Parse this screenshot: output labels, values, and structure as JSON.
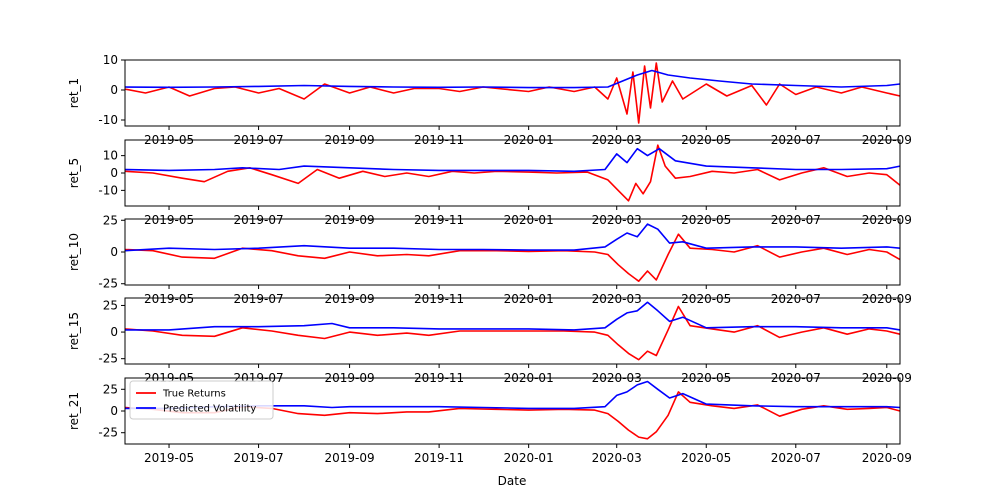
{
  "chart_data": {
    "type": "line",
    "shared_x": {
      "xlabel": "Date",
      "start": "2019-04-01",
      "end": "2020-09-10",
      "tick_dates": [
        "2019-05-01",
        "2019-07-01",
        "2019-09-01",
        "2019-11-01",
        "2020-01-01",
        "2020-03-01",
        "2020-05-01",
        "2020-07-01",
        "2020-09-01"
      ],
      "tick_labels": [
        "2019-05",
        "2019-07",
        "2019-09",
        "2019-11",
        "2020-01",
        "2020-03",
        "2020-05",
        "2020-07",
        "2020-09"
      ]
    },
    "legend": {
      "placement": "lower-left",
      "entries": [
        {
          "name": "True Returns",
          "color": "#ff0000"
        },
        {
          "name": "Predicted Volatility",
          "color": "#0000ff"
        }
      ]
    },
    "panels": [
      {
        "ylabel": "ret_1",
        "ylim": [
          -12,
          10
        ],
        "yticks": [
          -10,
          0,
          10
        ],
        "series": [
          {
            "name": "True Returns",
            "color": "#ff0000",
            "x": [
              "2019-04-01",
              "2019-04-15",
              "2019-05-01",
              "2019-05-15",
              "2019-06-01",
              "2019-06-15",
              "2019-07-01",
              "2019-07-15",
              "2019-08-01",
              "2019-08-15",
              "2019-09-01",
              "2019-09-15",
              "2019-10-01",
              "2019-10-15",
              "2019-11-01",
              "2019-11-15",
              "2019-12-01",
              "2019-12-15",
              "2020-01-01",
              "2020-01-15",
              "2020-02-01",
              "2020-02-15",
              "2020-02-24",
              "2020-03-01",
              "2020-03-08",
              "2020-03-12",
              "2020-03-16",
              "2020-03-20",
              "2020-03-24",
              "2020-03-28",
              "2020-04-01",
              "2020-04-08",
              "2020-04-15",
              "2020-05-01",
              "2020-05-15",
              "2020-06-01",
              "2020-06-11",
              "2020-06-20",
              "2020-07-01",
              "2020-07-15",
              "2020-08-01",
              "2020-08-15",
              "2020-09-01",
              "2020-09-10"
            ],
            "y": [
              0.3,
              -1,
              1,
              -2,
              0.5,
              1,
              -1,
              0.5,
              -3,
              2,
              -1,
              1,
              -1,
              0.5,
              0.5,
              -0.5,
              1,
              0.3,
              -0.5,
              1,
              -0.5,
              1,
              -3,
              4,
              -8,
              6,
              -11,
              8,
              -6,
              9,
              -4,
              3,
              -3,
              2,
              -2,
              1.5,
              -5,
              2,
              -1.5,
              1,
              -1,
              1,
              -1,
              -2
            ]
          },
          {
            "name": "Predicted Volatility",
            "color": "#0000ff",
            "x": [
              "2019-04-01",
              "2019-05-01",
              "2019-06-01",
              "2019-07-01",
              "2019-08-01",
              "2019-09-01",
              "2019-10-01",
              "2019-11-01",
              "2019-12-01",
              "2020-01-01",
              "2020-02-01",
              "2020-02-24",
              "2020-03-05",
              "2020-03-15",
              "2020-03-25",
              "2020-04-05",
              "2020-04-20",
              "2020-05-10",
              "2020-06-01",
              "2020-07-01",
              "2020-08-01",
              "2020-09-01",
              "2020-09-10"
            ],
            "y": [
              1,
              0.9,
              1,
              1.2,
              1.5,
              1.2,
              1,
              0.9,
              1,
              0.8,
              0.8,
              1,
              3,
              5,
              6.5,
              5,
              4,
              3,
              2,
              1.5,
              1,
              1.5,
              2
            ]
          }
        ]
      },
      {
        "ylabel": "ret_5",
        "ylim": [
          -19,
          19
        ],
        "yticks": [
          -10,
          0,
          10
        ],
        "series": [
          {
            "name": "True Returns",
            "color": "#ff0000",
            "x": [
              "2019-04-01",
              "2019-04-20",
              "2019-05-10",
              "2019-05-25",
              "2019-06-10",
              "2019-06-25",
              "2019-07-10",
              "2019-07-28",
              "2019-08-10",
              "2019-08-25",
              "2019-09-10",
              "2019-09-25",
              "2019-10-10",
              "2019-10-25",
              "2019-11-10",
              "2019-11-25",
              "2019-12-10",
              "2020-01-01",
              "2020-01-20",
              "2020-02-10",
              "2020-02-24",
              "2020-03-02",
              "2020-03-09",
              "2020-03-14",
              "2020-03-19",
              "2020-03-24",
              "2020-03-29",
              "2020-04-03",
              "2020-04-10",
              "2020-04-20",
              "2020-05-05",
              "2020-05-20",
              "2020-06-05",
              "2020-06-20",
              "2020-07-05",
              "2020-07-20",
              "2020-08-05",
              "2020-08-20",
              "2020-09-01",
              "2020-09-10"
            ],
            "y": [
              1,
              0,
              -3,
              -5,
              1,
              3,
              -1,
              -6,
              2,
              -3,
              1,
              -2,
              0,
              -2,
              1,
              0,
              1,
              0.5,
              0,
              0.5,
              -4,
              -10,
              -16,
              -6,
              -12,
              -5,
              16,
              4,
              -3,
              -2,
              1,
              0,
              2,
              -4,
              0,
              3,
              -2,
              0,
              -1,
              -7
            ]
          },
          {
            "name": "Predicted Volatility",
            "color": "#0000ff",
            "x": [
              "2019-04-01",
              "2019-05-01",
              "2019-06-01",
              "2019-06-20",
              "2019-07-15",
              "2019-08-01",
              "2019-09-01",
              "2019-10-01",
              "2019-11-01",
              "2019-12-01",
              "2020-01-01",
              "2020-02-01",
              "2020-02-22",
              "2020-03-01",
              "2020-03-08",
              "2020-03-15",
              "2020-03-22",
              "2020-03-30",
              "2020-04-10",
              "2020-05-01",
              "2020-06-01",
              "2020-07-01",
              "2020-08-01",
              "2020-09-01",
              "2020-09-10"
            ],
            "y": [
              2,
              1.5,
              2,
              3,
              2,
              4,
              3,
              2,
              1.5,
              1.5,
              1.5,
              1,
              2,
              11,
              6,
              14,
              10,
              14,
              7,
              4,
              3,
              2,
              2,
              2.5,
              4
            ]
          }
        ]
      },
      {
        "ylabel": "ret_10",
        "ylim": [
          -26,
          26
        ],
        "yticks": [
          -25,
          0,
          25
        ],
        "series": [
          {
            "name": "True Returns",
            "color": "#ff0000",
            "x": [
              "2019-04-01",
              "2019-04-20",
              "2019-05-10",
              "2019-06-01",
              "2019-06-20",
              "2019-07-10",
              "2019-07-28",
              "2019-08-15",
              "2019-09-01",
              "2019-09-20",
              "2019-10-10",
              "2019-10-25",
              "2019-11-15",
              "2019-12-10",
              "2020-01-01",
              "2020-01-25",
              "2020-02-15",
              "2020-02-24",
              "2020-03-02",
              "2020-03-09",
              "2020-03-16",
              "2020-03-22",
              "2020-03-28",
              "2020-04-05",
              "2020-04-12",
              "2020-04-20",
              "2020-05-05",
              "2020-05-20",
              "2020-06-05",
              "2020-06-20",
              "2020-07-05",
              "2020-07-20",
              "2020-08-05",
              "2020-08-20",
              "2020-09-01",
              "2020-09-10"
            ],
            "y": [
              2,
              1,
              -4,
              -5,
              3,
              1,
              -3,
              -5,
              0,
              -3,
              -2,
              -3,
              1,
              1,
              0.5,
              1,
              0,
              -2,
              -10,
              -17,
              -23,
              -15,
              -22,
              -2,
              14,
              3,
              2,
              0,
              5,
              -4,
              0,
              3,
              -2,
              2,
              0,
              -6
            ]
          },
          {
            "name": "Predicted Volatility",
            "color": "#0000ff",
            "x": [
              "2019-04-01",
              "2019-05-01",
              "2019-06-01",
              "2019-07-01",
              "2019-08-01",
              "2019-09-01",
              "2019-10-01",
              "2019-11-01",
              "2019-12-01",
              "2020-01-01",
              "2020-02-01",
              "2020-02-22",
              "2020-03-01",
              "2020-03-08",
              "2020-03-15",
              "2020-03-22",
              "2020-03-29",
              "2020-04-06",
              "2020-04-15",
              "2020-05-01",
              "2020-06-01",
              "2020-07-01",
              "2020-08-01",
              "2020-09-01",
              "2020-09-10"
            ],
            "y": [
              1,
              3,
              2,
              3,
              5,
              3,
              3,
              2,
              2,
              1.5,
              1.5,
              4,
              10,
              15,
              12,
              22,
              18,
              7,
              8,
              3,
              4,
              4,
              3,
              4,
              3
            ]
          }
        ]
      },
      {
        "ylabel": "ret_15",
        "ylim": [
          -30,
          32
        ],
        "yticks": [
          -25,
          0,
          25
        ],
        "series": [
          {
            "name": "True Returns",
            "color": "#ff0000",
            "x": [
              "2019-04-01",
              "2019-04-20",
              "2019-05-10",
              "2019-06-01",
              "2019-06-20",
              "2019-07-10",
              "2019-07-28",
              "2019-08-15",
              "2019-09-01",
              "2019-09-20",
              "2019-10-10",
              "2019-10-25",
              "2019-11-15",
              "2019-12-10",
              "2020-01-01",
              "2020-01-25",
              "2020-02-15",
              "2020-02-24",
              "2020-03-02",
              "2020-03-09",
              "2020-03-16",
              "2020-03-22",
              "2020-03-28",
              "2020-04-05",
              "2020-04-12",
              "2020-04-20",
              "2020-05-05",
              "2020-05-20",
              "2020-06-05",
              "2020-06-20",
              "2020-07-05",
              "2020-07-20",
              "2020-08-05",
              "2020-08-20",
              "2020-09-01",
              "2020-09-10"
            ],
            "y": [
              3,
              1,
              -3,
              -4,
              4,
              1,
              -3,
              -6,
              0,
              -3,
              -1,
              -3,
              1,
              1,
              1,
              1,
              0,
              -3,
              -12,
              -20,
              -26,
              -18,
              -22,
              2,
              24,
              6,
              3,
              0,
              6,
              -5,
              0,
              4,
              -2,
              3,
              1,
              -2
            ]
          },
          {
            "name": "Predicted Volatility",
            "color": "#0000ff",
            "x": [
              "2019-04-01",
              "2019-05-01",
              "2019-06-01",
              "2019-07-01",
              "2019-08-01",
              "2019-08-20",
              "2019-09-01",
              "2019-10-01",
              "2019-11-01",
              "2019-12-01",
              "2020-01-01",
              "2020-02-01",
              "2020-02-22",
              "2020-03-01",
              "2020-03-08",
              "2020-03-15",
              "2020-03-22",
              "2020-03-29",
              "2020-04-06",
              "2020-04-15",
              "2020-05-01",
              "2020-06-01",
              "2020-07-01",
              "2020-08-01",
              "2020-09-01",
              "2020-09-10"
            ],
            "y": [
              2,
              2,
              5,
              5,
              6,
              8,
              4,
              4,
              3,
              3,
              3,
              2,
              4,
              12,
              18,
              20,
              28,
              20,
              10,
              14,
              4,
              5,
              5,
              4,
              4,
              2
            ]
          }
        ]
      },
      {
        "ylabel": "ret_21",
        "ylim": [
          -38,
          38
        ],
        "yticks": [
          -25,
          0,
          25
        ],
        "series": [
          {
            "name": "True Returns",
            "color": "#ff0000",
            "x": [
              "2019-04-01",
              "2019-04-20",
              "2019-05-10",
              "2019-06-01",
              "2019-06-20",
              "2019-07-10",
              "2019-07-28",
              "2019-08-15",
              "2019-09-01",
              "2019-09-20",
              "2019-10-10",
              "2019-10-25",
              "2019-11-15",
              "2019-12-10",
              "2020-01-01",
              "2020-01-25",
              "2020-02-15",
              "2020-02-24",
              "2020-03-02",
              "2020-03-09",
              "2020-03-16",
              "2020-03-22",
              "2020-03-28",
              "2020-04-05",
              "2020-04-12",
              "2020-04-20",
              "2020-05-05",
              "2020-05-20",
              "2020-06-05",
              "2020-06-20",
              "2020-07-05",
              "2020-07-20",
              "2020-08-05",
              "2020-08-20",
              "2020-09-01",
              "2020-09-10"
            ],
            "y": [
              4,
              2,
              -2,
              -2,
              5,
              3,
              -3,
              -5,
              -2,
              -3,
              -1,
              -1,
              3,
              2,
              1,
              2,
              1,
              -3,
              -12,
              -22,
              -30,
              -32,
              -24,
              -5,
              22,
              10,
              6,
              3,
              7,
              -6,
              2,
              6,
              2,
              3,
              4,
              0
            ]
          },
          {
            "name": "Predicted Volatility",
            "color": "#0000ff",
            "x": [
              "2019-04-01",
              "2019-05-01",
              "2019-06-01",
              "2019-07-01",
              "2019-08-01",
              "2019-08-20",
              "2019-09-01",
              "2019-10-01",
              "2019-11-01",
              "2019-12-01",
              "2020-01-01",
              "2020-02-01",
              "2020-02-22",
              "2020-03-01",
              "2020-03-08",
              "2020-03-15",
              "2020-03-22",
              "2020-03-29",
              "2020-04-06",
              "2020-04-15",
              "2020-05-01",
              "2020-06-01",
              "2020-07-01",
              "2020-08-01",
              "2020-09-01",
              "2020-09-10"
            ],
            "y": [
              3,
              3,
              5,
              6,
              6,
              4,
              5,
              5,
              5,
              4,
              3,
              3,
              5,
              18,
              22,
              30,
              34,
              25,
              15,
              20,
              8,
              6,
              5,
              5,
              5,
              4
            ]
          }
        ]
      }
    ]
  }
}
